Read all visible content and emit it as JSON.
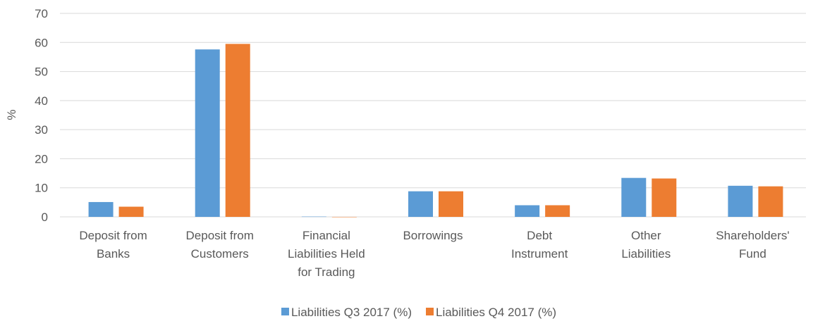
{
  "chart_data": {
    "type": "bar",
    "y_label": "%",
    "categories": [
      "Deposit from\nBanks",
      "Deposit from\nCustomers",
      "Financial\nLiabilities Held\nfor Trading",
      "Borrowings",
      "Debt\nInstrument",
      "Other\nLiabilities",
      "Shareholders'\nFund"
    ],
    "series": [
      {
        "name": "Liabilities Q3 2017 (%)",
        "color": "#5b9bd5",
        "values": [
          5.1,
          57.6,
          0.1,
          8.8,
          4.0,
          13.4,
          10.7
        ]
      },
      {
        "name": "Liabilities Q4 2017 (%)",
        "color": "#ed7d31",
        "values": [
          3.5,
          59.5,
          0.0,
          8.8,
          4.0,
          13.2,
          10.5
        ]
      }
    ],
    "ylim": [
      0,
      70
    ],
    "yticks": [
      0,
      10,
      20,
      30,
      40,
      50,
      60,
      70
    ],
    "grid": true,
    "legend": "bottom"
  }
}
